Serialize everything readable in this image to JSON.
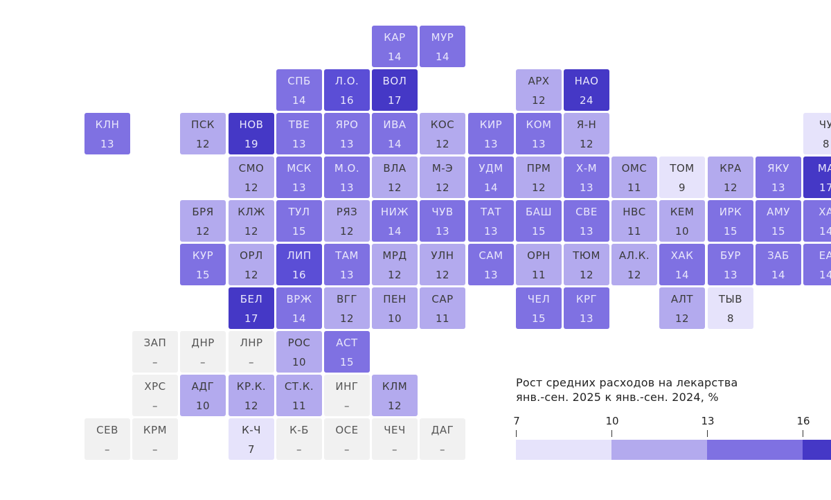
{
  "legend": {
    "title": "Рост средних расходов на лекарства\nянв.-сен. 2025 к янв.-сен. 2024, %",
    "ticks": [
      "7",
      "10",
      "13",
      "16"
    ],
    "colors": [
      "#e6e3fb",
      "#b3aaee",
      "#7f71e2",
      "#4538c6"
    ]
  },
  "colors": {
    "na": "#f1f1f1",
    "scale": [
      "#e6e3fb",
      "#b3aaee",
      "#7f71e2",
      "#4538c6"
    ]
  },
  "regions": [
    {
      "code": "КАР",
      "value": "14",
      "col": 6,
      "row": 0
    },
    {
      "code": "МУР",
      "value": "14",
      "col": 7,
      "row": 0
    },
    {
      "code": "СПБ",
      "value": "14",
      "col": 4,
      "row": 1
    },
    {
      "code": "Л.О.",
      "value": "16",
      "col": 5,
      "row": 1
    },
    {
      "code": "ВОЛ",
      "value": "17",
      "col": 6,
      "row": 1
    },
    {
      "code": "АРХ",
      "value": "12",
      "col": 9,
      "row": 1
    },
    {
      "code": "НАО",
      "value": "24",
      "col": 10,
      "row": 1
    },
    {
      "code": "КЛН",
      "value": "13",
      "col": 0,
      "row": 2
    },
    {
      "code": "ПСК",
      "value": "12",
      "col": 2,
      "row": 2
    },
    {
      "code": "НОВ",
      "value": "19",
      "col": 3,
      "row": 2
    },
    {
      "code": "ТВЕ",
      "value": "13",
      "col": 4,
      "row": 2
    },
    {
      "code": "ЯРО",
      "value": "13",
      "col": 5,
      "row": 2
    },
    {
      "code": "ИВА",
      "value": "14",
      "col": 6,
      "row": 2
    },
    {
      "code": "КОС",
      "value": "12",
      "col": 7,
      "row": 2
    },
    {
      "code": "КИР",
      "value": "13",
      "col": 8,
      "row": 2
    },
    {
      "code": "КОМ",
      "value": "13",
      "col": 9,
      "row": 2
    },
    {
      "code": "Я-Н",
      "value": "12",
      "col": 10,
      "row": 2
    },
    {
      "code": "ЧУ",
      "value": "8",
      "col": 15,
      "row": 2
    },
    {
      "code": "СМО",
      "value": "12",
      "col": 3,
      "row": 3
    },
    {
      "code": "МСК",
      "value": "13",
      "col": 4,
      "row": 3
    },
    {
      "code": "М.О.",
      "value": "13",
      "col": 5,
      "row": 3
    },
    {
      "code": "ВЛА",
      "value": "12",
      "col": 6,
      "row": 3
    },
    {
      "code": "М-Э",
      "value": "12",
      "col": 7,
      "row": 3
    },
    {
      "code": "УДМ",
      "value": "14",
      "col": 8,
      "row": 3
    },
    {
      "code": "ПРМ",
      "value": "12",
      "col": 9,
      "row": 3
    },
    {
      "code": "Х-М",
      "value": "13",
      "col": 10,
      "row": 3
    },
    {
      "code": "ОМС",
      "value": "11",
      "col": 11,
      "row": 3
    },
    {
      "code": "ТОМ",
      "value": "9",
      "col": 12,
      "row": 3
    },
    {
      "code": "КРА",
      "value": "12",
      "col": 13,
      "row": 3
    },
    {
      "code": "ЯКУ",
      "value": "13",
      "col": 14,
      "row": 3
    },
    {
      "code": "МА",
      "value": "17",
      "col": 15,
      "row": 3
    },
    {
      "code": "БРЯ",
      "value": "12",
      "col": 2,
      "row": 4
    },
    {
      "code": "КЛЖ",
      "value": "12",
      "col": 3,
      "row": 4
    },
    {
      "code": "ТУЛ",
      "value": "15",
      "col": 4,
      "row": 4
    },
    {
      "code": "РЯЗ",
      "value": "12",
      "col": 5,
      "row": 4
    },
    {
      "code": "НИЖ",
      "value": "14",
      "col": 6,
      "row": 4
    },
    {
      "code": "ЧУВ",
      "value": "13",
      "col": 7,
      "row": 4
    },
    {
      "code": "ТАТ",
      "value": "13",
      "col": 8,
      "row": 4
    },
    {
      "code": "БАШ",
      "value": "15",
      "col": 9,
      "row": 4
    },
    {
      "code": "СВЕ",
      "value": "13",
      "col": 10,
      "row": 4
    },
    {
      "code": "НВС",
      "value": "11",
      "col": 11,
      "row": 4
    },
    {
      "code": "КЕМ",
      "value": "10",
      "col": 12,
      "row": 4
    },
    {
      "code": "ИРК",
      "value": "15",
      "col": 13,
      "row": 4
    },
    {
      "code": "АМУ",
      "value": "15",
      "col": 14,
      "row": 4
    },
    {
      "code": "ХА",
      "value": "14",
      "col": 15,
      "row": 4
    },
    {
      "code": "КУР",
      "value": "15",
      "col": 2,
      "row": 5
    },
    {
      "code": "ОРЛ",
      "value": "12",
      "col": 3,
      "row": 5
    },
    {
      "code": "ЛИП",
      "value": "16",
      "col": 4,
      "row": 5
    },
    {
      "code": "ТАМ",
      "value": "13",
      "col": 5,
      "row": 5
    },
    {
      "code": "МРД",
      "value": "12",
      "col": 6,
      "row": 5
    },
    {
      "code": "УЛН",
      "value": "12",
      "col": 7,
      "row": 5
    },
    {
      "code": "САМ",
      "value": "13",
      "col": 8,
      "row": 5
    },
    {
      "code": "ОРН",
      "value": "11",
      "col": 9,
      "row": 5
    },
    {
      "code": "ТЮМ",
      "value": "12",
      "col": 10,
      "row": 5
    },
    {
      "code": "АЛ.К.",
      "value": "12",
      "col": 11,
      "row": 5
    },
    {
      "code": "ХАК",
      "value": "14",
      "col": 12,
      "row": 5
    },
    {
      "code": "БУР",
      "value": "13",
      "col": 13,
      "row": 5
    },
    {
      "code": "ЗАБ",
      "value": "14",
      "col": 14,
      "row": 5
    },
    {
      "code": "ЕА",
      "value": "14",
      "col": 15,
      "row": 5
    },
    {
      "code": "БЕЛ",
      "value": "17",
      "col": 3,
      "row": 6
    },
    {
      "code": "ВРЖ",
      "value": "14",
      "col": 4,
      "row": 6
    },
    {
      "code": "ВГГ",
      "value": "12",
      "col": 5,
      "row": 6
    },
    {
      "code": "ПЕН",
      "value": "10",
      "col": 6,
      "row": 6
    },
    {
      "code": "САР",
      "value": "11",
      "col": 7,
      "row": 6
    },
    {
      "code": "ЧЕЛ",
      "value": "15",
      "col": 9,
      "row": 6
    },
    {
      "code": "КРГ",
      "value": "13",
      "col": 10,
      "row": 6
    },
    {
      "code": "АЛТ",
      "value": "12",
      "col": 12,
      "row": 6
    },
    {
      "code": "ТЫВ",
      "value": "8",
      "col": 13,
      "row": 6
    },
    {
      "code": "ЗАП",
      "value": "–",
      "col": 1,
      "row": 7
    },
    {
      "code": "ДНР",
      "value": "–",
      "col": 2,
      "row": 7
    },
    {
      "code": "ЛНР",
      "value": "–",
      "col": 3,
      "row": 7
    },
    {
      "code": "РОС",
      "value": "10",
      "col": 4,
      "row": 7
    },
    {
      "code": "АСТ",
      "value": "15",
      "col": 5,
      "row": 7
    },
    {
      "code": "ХРС",
      "value": "–",
      "col": 1,
      "row": 8
    },
    {
      "code": "АДГ",
      "value": "10",
      "col": 2,
      "row": 8
    },
    {
      "code": "КР.К.",
      "value": "12",
      "col": 3,
      "row": 8
    },
    {
      "code": "СТ.К.",
      "value": "11",
      "col": 4,
      "row": 8
    },
    {
      "code": "ИНГ",
      "value": "–",
      "col": 5,
      "row": 8
    },
    {
      "code": "КЛМ",
      "value": "12",
      "col": 6,
      "row": 8
    },
    {
      "code": "СЕВ",
      "value": "–",
      "col": 0,
      "row": 9
    },
    {
      "code": "КРМ",
      "value": "–",
      "col": 1,
      "row": 9
    },
    {
      "code": "К-Ч",
      "value": "7",
      "col": 3,
      "row": 9
    },
    {
      "code": "К-Б",
      "value": "–",
      "col": 4,
      "row": 9
    },
    {
      "code": "ОСЕ",
      "value": "–",
      "col": 5,
      "row": 9
    },
    {
      "code": "ЧЕЧ",
      "value": "–",
      "col": 6,
      "row": 9
    },
    {
      "code": "ДАГ",
      "value": "–",
      "col": 7,
      "row": 9
    }
  ]
}
